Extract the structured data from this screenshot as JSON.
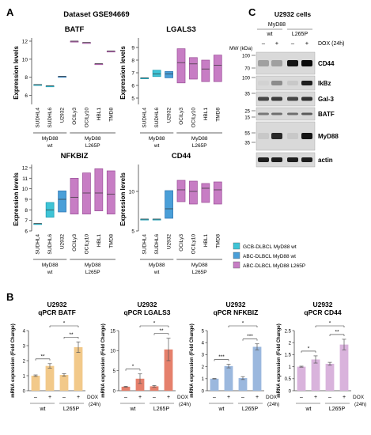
{
  "panel_a": {
    "letter": "A",
    "dataset_title": "Dataset GSE94669",
    "ylabel": "Expression levels",
    "cell_lines": [
      "SUDHL4",
      "SUDHL6",
      "U2932",
      "OCILy3",
      "OCILy10",
      "HBL1",
      "TMD8"
    ],
    "group_wt": [
      "MyD88",
      "wt"
    ],
    "group_mut": [
      "MyD88",
      "L265P"
    ],
    "legend": [
      {
        "label": "GCB-DLBCL MyD88 wt",
        "color": "#3fc4d6"
      },
      {
        "label": "ABC-DLBCL MyD88 wt",
        "color": "#4a9fd8"
      },
      {
        "label": "ABC-DLBCL MyD88 L265P",
        "color": "#c77dc4"
      }
    ]
  },
  "panel_b": {
    "letter": "B",
    "xlabel_signs": [
      "–",
      "+",
      "–",
      "+"
    ],
    "dox_label": "DOX",
    "dox_sub": "(24h)",
    "group_wt": "wt",
    "group_mut": "L265P",
    "sig_labels": [
      "**",
      "*",
      "**",
      "*",
      "**",
      "***",
      "***",
      "*",
      "*",
      "**"
    ]
  },
  "panel_c": {
    "letter": "C",
    "title": "U2932 cells",
    "myd88": "MyD88",
    "wt": "wt",
    "mut": "L265P",
    "dox": "DOX (24h)",
    "mw": "MW (kDa)",
    "signs": [
      "–",
      "+",
      "–",
      "+"
    ],
    "mw_marks": [
      "100",
      "70",
      "100",
      "35",
      "25",
      "15",
      "55",
      "35"
    ],
    "bands": [
      "CD44",
      "IkBz",
      "Gal-3",
      "BATF",
      "MyD88",
      "actin"
    ]
  },
  "chart_data": [
    {
      "type": "box",
      "title": "BATF",
      "ylabel": "Expression levels",
      "ylim": [
        5,
        12
      ],
      "ticks": [
        6,
        8,
        10,
        12
      ],
      "categories": [
        "SUDHL4",
        "SUDHL6",
        "U2932",
        "OCILy3",
        "OCILy10",
        "HBL1",
        "TMD8"
      ],
      "boxes": [
        [
          7.2,
          7.2,
          7.2
        ],
        [
          7.05,
          7.05,
          7.05
        ],
        [
          8.1,
          8.1,
          8.1
        ],
        [
          12,
          12,
          12
        ],
        [
          11.85,
          11.85,
          11.85
        ],
        [
          9.5,
          9.5,
          9.5
        ],
        [
          10.9,
          10.9,
          10.9
        ]
      ]
    },
    {
      "type": "box",
      "title": "LGALS3",
      "ylabel": "Expression levels",
      "ylim": [
        4.5,
        9.5
      ],
      "ticks": [
        5,
        6,
        7,
        8,
        9
      ],
      "categories": [
        "SUDHL4",
        "SUDHL6",
        "U2932",
        "OCILy3",
        "OCILy10",
        "HBL1",
        "TMD8"
      ],
      "boxes": [
        [
          6.6,
          6.6,
          6.6
        ],
        [
          6.7,
          6.9,
          7.2
        ],
        [
          6.6,
          6.9,
          7.1
        ],
        [
          6.2,
          7.8,
          8.9
        ],
        [
          6.5,
          7.7,
          8.2
        ],
        [
          6.3,
          7.3,
          8.0
        ],
        [
          6.3,
          7.6,
          8.4
        ]
      ]
    },
    {
      "type": "box",
      "title": "NFKBIZ",
      "ylabel": "Expression levels",
      "ylim": [
        6,
        12
      ],
      "ticks": [
        6,
        7,
        8,
        9,
        10,
        11,
        12
      ],
      "categories": [
        "SUDHL4",
        "SUDHL6",
        "U2932",
        "OCILy3",
        "OCILy10",
        "HBL1",
        "TMD8"
      ],
      "boxes": [
        [
          6.7,
          6.7,
          6.7
        ],
        [
          7.3,
          8.0,
          8.7
        ],
        [
          7.8,
          9.0,
          9.8
        ],
        [
          7.6,
          9.2,
          11.0
        ],
        [
          7.6,
          9.6,
          11.5
        ],
        [
          7.9,
          9.6,
          11.9
        ],
        [
          7.6,
          9.5,
          11.7
        ]
      ]
    },
    {
      "type": "box",
      "title": "CD44",
      "ylabel": "Expression levels",
      "ylim": [
        5,
        13
      ],
      "ticks": [
        5,
        10
      ],
      "categories": [
        "SUDHL4",
        "SUDHL6",
        "U2932",
        "OCILy3",
        "OCILy10",
        "HBL1",
        "TMD8"
      ],
      "boxes": [
        [
          6.5,
          6.5,
          6.5
        ],
        [
          6.5,
          6.5,
          6.5
        ],
        [
          6.6,
          7.8,
          10.1
        ],
        [
          8.7,
          10.2,
          11.4
        ],
        [
          8.4,
          10.0,
          11.3
        ],
        [
          8.6,
          10.4,
          11.0
        ],
        [
          8.4,
          10.2,
          11.2
        ]
      ]
    },
    {
      "type": "bar",
      "title": "U2932\nqPCR BATF",
      "ylabel": "mRNA expression (Fold Change)",
      "ylim": [
        0,
        4
      ],
      "ticks": [
        0,
        1,
        2,
        3,
        4
      ],
      "categories": [
        "wt –",
        "wt +",
        "L265P –",
        "L265P +"
      ],
      "values": [
        1.0,
        1.65,
        1.05,
        2.9
      ],
      "errors": [
        0.05,
        0.15,
        0.08,
        0.35
      ],
      "color": "#f2c98a"
    },
    {
      "type": "bar",
      "title": "U2932\nqPCR LGALS3",
      "ylabel": "mRNA expression (Fold Change)",
      "ylim": [
        0,
        15
      ],
      "ticks": [
        0,
        5,
        10,
        15
      ],
      "categories": [
        "wt –",
        "wt +",
        "L265P –",
        "L265P +"
      ],
      "values": [
        1.0,
        3.0,
        1.1,
        10.3
      ],
      "errors": [
        0.1,
        1.2,
        0.2,
        2.8
      ],
      "color": "#e5806c"
    },
    {
      "type": "bar",
      "title": "U2932\nqPCR NFKBIZ",
      "ylabel": "mRNA expression (Fold Change)",
      "ylim": [
        0,
        5
      ],
      "ticks": [
        0,
        1,
        2,
        3,
        4,
        5
      ],
      "categories": [
        "wt –",
        "wt +",
        "L265P –",
        "L265P +"
      ],
      "values": [
        1.0,
        2.05,
        1.05,
        3.65
      ],
      "errors": [
        0.02,
        0.15,
        0.12,
        0.25
      ],
      "color": "#9bb8de"
    },
    {
      "type": "bar",
      "title": "U2932\nqPCR CD44",
      "ylabel": "mRNA expression (Fold Change)",
      "ylim": [
        0,
        2.5
      ],
      "ticks": [
        0,
        0.5,
        1.0,
        1.5,
        2.0,
        2.5
      ],
      "categories": [
        "wt –",
        "wt +",
        "L265P –",
        "L265P +"
      ],
      "values": [
        1.0,
        1.3,
        1.12,
        1.92
      ],
      "errors": [
        0.02,
        0.15,
        0.06,
        0.22
      ],
      "color": "#d9b3dc"
    }
  ]
}
